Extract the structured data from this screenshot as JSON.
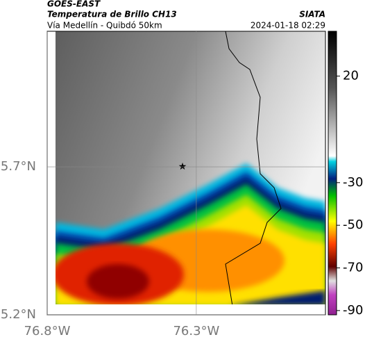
{
  "header": {
    "title": "GOES-EAST",
    "subtitle": "Temperatura de Brillo CH13",
    "location": "Vía Medellín - Quibdó 50km",
    "source": "SIATA",
    "timestamp": "2024-01-18 02:29"
  },
  "map": {
    "xlim": [
      -76.8,
      -75.867
    ],
    "ylim": [
      5.2,
      6.158
    ],
    "xticks": [
      {
        "value": -76.8,
        "label": "76.8°W"
      },
      {
        "value": -76.3,
        "label": "76.3°W"
      }
    ],
    "yticks": [
      {
        "value": 5.2,
        "label": "5.2°N"
      },
      {
        "value": 5.7,
        "label": "5.7°N"
      }
    ],
    "grid": true
  },
  "colorbar": {
    "lim": [
      -92,
      41
    ],
    "ticks": [
      20,
      -30,
      -50,
      -70,
      -90
    ]
  }
}
